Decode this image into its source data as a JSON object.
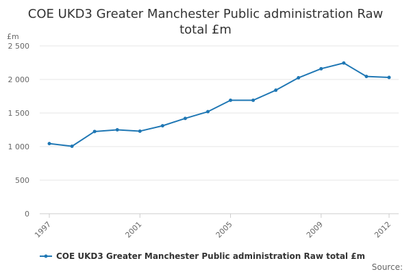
{
  "chart_data": {
    "type": "line",
    "title_lines": [
      "COE UKD3 Greater Manchester Public administration Raw",
      "total £m"
    ],
    "ylabel": "£m",
    "ylim": [
      0,
      2500
    ],
    "yticks": [
      0,
      500,
      1000,
      1500,
      2000,
      2500
    ],
    "ytick_labels": [
      "0",
      "500",
      "1 000",
      "1 500",
      "2 000",
      "2 500"
    ],
    "xlim": [
      1997,
      2012
    ],
    "xticks": [
      1997,
      2001,
      2005,
      2009,
      2012
    ],
    "xtick_labels": [
      "1997",
      "2001",
      "2005",
      "2009",
      "2012"
    ],
    "series": [
      {
        "name": "COE UKD3 Greater Manchester Public administration Raw total £m",
        "color": "#1f77b4",
        "x": [
          1997,
          1998,
          1999,
          2000,
          2001,
          2002,
          2003,
          2004,
          2005,
          2006,
          2007,
          2008,
          2009,
          2010,
          2011,
          2012
        ],
        "values": [
          1045,
          1005,
          1225,
          1250,
          1230,
          1310,
          1420,
          1520,
          1690,
          1690,
          1840,
          2025,
          2160,
          2245,
          2045,
          2030
        ]
      }
    ],
    "legend_position": "bottom-left",
    "source_label": "Source:"
  }
}
